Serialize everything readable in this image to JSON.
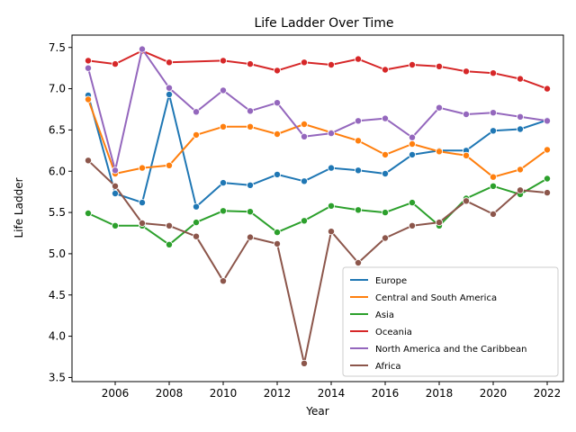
{
  "chart_data": {
    "type": "line",
    "title": "Life Ladder Over Time",
    "xlabel": "Year",
    "ylabel": "Life Ladder",
    "xlim": [
      2004.4,
      2022.6
    ],
    "ylim": [
      3.45,
      7.65
    ],
    "xticks": [
      2006,
      2008,
      2010,
      2012,
      2014,
      2016,
      2018,
      2020,
      2022
    ],
    "yticks": [
      3.5,
      4.0,
      4.5,
      5.0,
      5.5,
      6.0,
      6.5,
      7.0,
      7.5
    ],
    "grid": false,
    "legend_position": "lower-right",
    "x": [
      2005,
      2006,
      2007,
      2008,
      2009,
      2010,
      2011,
      2012,
      2013,
      2014,
      2015,
      2016,
      2017,
      2018,
      2019,
      2020,
      2021,
      2022
    ],
    "series": [
      {
        "name": "Europe",
        "color": "#1f77b4",
        "values": [
          6.92,
          5.73,
          5.62,
          6.93,
          5.57,
          5.86,
          5.83,
          5.96,
          5.88,
          6.04,
          6.01,
          5.97,
          6.2,
          6.25,
          6.25,
          6.49,
          6.51,
          6.62
        ]
      },
      {
        "name": "Central and South America",
        "color": "#ff7f0e",
        "values": [
          6.87,
          5.97,
          6.04,
          6.07,
          6.44,
          6.54,
          6.54,
          6.45,
          6.57,
          6.47,
          6.37,
          6.2,
          6.33,
          6.24,
          6.19,
          5.93,
          6.02,
          6.26
        ]
      },
      {
        "name": "Asia",
        "color": "#2ca02c",
        "values": [
          5.49,
          5.34,
          5.34,
          5.11,
          5.38,
          5.52,
          5.51,
          5.26,
          5.4,
          5.58,
          5.53,
          5.5,
          5.62,
          5.34,
          5.67,
          5.82,
          5.72,
          5.91
        ]
      },
      {
        "name": "Oceania",
        "color": "#d62728",
        "values": [
          7.34,
          7.3,
          7.46,
          7.32,
          null,
          7.34,
          7.3,
          7.22,
          7.32,
          7.29,
          7.36,
          7.23,
          7.29,
          7.27,
          7.21,
          7.19,
          7.12,
          7.0
        ]
      },
      {
        "name": "North America and the Caribbean",
        "color": "#9467bd",
        "values": [
          7.25,
          6.01,
          7.48,
          7.01,
          6.72,
          6.98,
          6.73,
          6.83,
          6.42,
          6.46,
          6.61,
          6.64,
          6.41,
          6.77,
          6.69,
          6.71,
          6.66,
          6.61
        ]
      },
      {
        "name": "Africa",
        "color": "#8c564b",
        "values": [
          6.13,
          5.82,
          5.37,
          5.34,
          5.21,
          4.67,
          5.2,
          5.12,
          3.67,
          5.27,
          4.89,
          5.19,
          5.34,
          5.38,
          5.64,
          5.48,
          5.77,
          5.74
        ]
      }
    ]
  }
}
